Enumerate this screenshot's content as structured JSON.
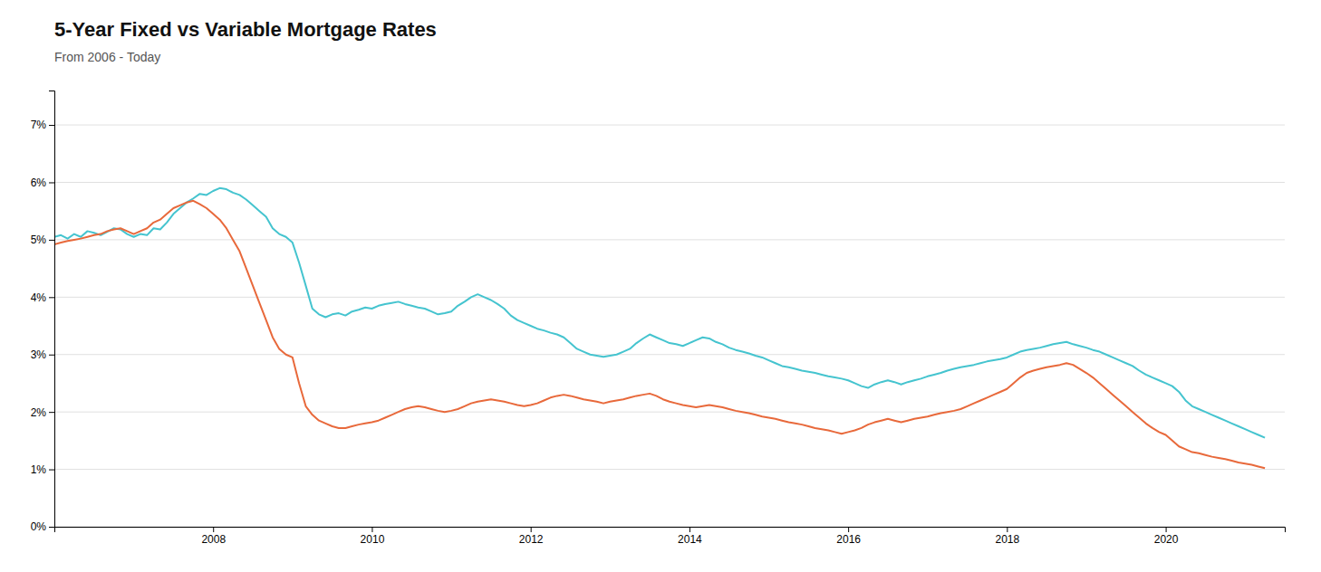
{
  "chart_data": {
    "type": "line",
    "title": "5-Year Fixed vs Variable Mortgage Rates",
    "subtitle": "From 2006 - Today",
    "x": [
      2006.0,
      2006.083,
      2006.167,
      2006.25,
      2006.333,
      2006.417,
      2006.5,
      2006.583,
      2006.667,
      2006.75,
      2006.833,
      2006.917,
      2007.0,
      2007.083,
      2007.167,
      2007.25,
      2007.333,
      2007.417,
      2007.5,
      2007.583,
      2007.667,
      2007.75,
      2007.833,
      2007.917,
      2008.0,
      2008.083,
      2008.167,
      2008.25,
      2008.333,
      2008.417,
      2008.5,
      2008.583,
      2008.667,
      2008.75,
      2008.833,
      2008.917,
      2009.0,
      2009.083,
      2009.167,
      2009.25,
      2009.333,
      2009.417,
      2009.5,
      2009.583,
      2009.667,
      2009.75,
      2009.833,
      2009.917,
      2010.0,
      2010.083,
      2010.167,
      2010.25,
      2010.333,
      2010.417,
      2010.5,
      2010.583,
      2010.667,
      2010.75,
      2010.833,
      2010.917,
      2011.0,
      2011.083,
      2011.167,
      2011.25,
      2011.333,
      2011.417,
      2011.5,
      2011.583,
      2011.667,
      2011.75,
      2011.833,
      2011.917,
      2012.0,
      2012.083,
      2012.167,
      2012.25,
      2012.333,
      2012.417,
      2012.5,
      2012.583,
      2012.667,
      2012.75,
      2012.833,
      2012.917,
      2013.0,
      2013.083,
      2013.167,
      2013.25,
      2013.333,
      2013.417,
      2013.5,
      2013.583,
      2013.667,
      2013.75,
      2013.833,
      2013.917,
      2014.0,
      2014.083,
      2014.167,
      2014.25,
      2014.333,
      2014.417,
      2014.5,
      2014.583,
      2014.667,
      2014.75,
      2014.833,
      2014.917,
      2015.0,
      2015.083,
      2015.167,
      2015.25,
      2015.333,
      2015.417,
      2015.5,
      2015.583,
      2015.667,
      2015.75,
      2015.833,
      2015.917,
      2016.0,
      2016.083,
      2016.167,
      2016.25,
      2016.333,
      2016.417,
      2016.5,
      2016.583,
      2016.667,
      2016.75,
      2016.833,
      2016.917,
      2017.0,
      2017.083,
      2017.167,
      2017.25,
      2017.333,
      2017.417,
      2017.5,
      2017.583,
      2017.667,
      2017.75,
      2017.833,
      2017.917,
      2018.0,
      2018.083,
      2018.167,
      2018.25,
      2018.333,
      2018.417,
      2018.5,
      2018.583,
      2018.667,
      2018.75,
      2018.833,
      2018.917,
      2019.0,
      2019.083,
      2019.167,
      2019.25,
      2019.333,
      2019.417,
      2019.5,
      2019.583,
      2019.667,
      2019.75,
      2019.833,
      2019.917,
      2020.0,
      2020.083,
      2020.167,
      2020.25,
      2020.333,
      2020.417,
      2020.5,
      2020.583,
      2020.667,
      2020.75,
      2020.833,
      2020.917,
      2021.0,
      2021.083,
      2021.167,
      2021.25
    ],
    "series": [
      {
        "color": "#45c4cf",
        "values": [
          5.05,
          5.08,
          5.02,
          5.1,
          5.05,
          5.15,
          5.12,
          5.08,
          5.14,
          5.2,
          5.18,
          5.1,
          5.05,
          5.1,
          5.08,
          5.2,
          5.18,
          5.3,
          5.45,
          5.55,
          5.65,
          5.72,
          5.8,
          5.78,
          5.85,
          5.9,
          5.88,
          5.82,
          5.78,
          5.7,
          5.6,
          5.5,
          5.4,
          5.2,
          5.1,
          5.05,
          4.95,
          4.6,
          4.2,
          3.8,
          3.7,
          3.65,
          3.7,
          3.72,
          3.68,
          3.75,
          3.78,
          3.82,
          3.8,
          3.85,
          3.88,
          3.9,
          3.92,
          3.88,
          3.85,
          3.82,
          3.8,
          3.75,
          3.7,
          3.72,
          3.75,
          3.85,
          3.92,
          4.0,
          4.05,
          4.0,
          3.95,
          3.88,
          3.8,
          3.68,
          3.6,
          3.55,
          3.5,
          3.45,
          3.42,
          3.38,
          3.35,
          3.3,
          3.2,
          3.1,
          3.05,
          3.0,
          2.98,
          2.96,
          2.98,
          3.0,
          3.05,
          3.1,
          3.2,
          3.28,
          3.35,
          3.3,
          3.25,
          3.2,
          3.18,
          3.15,
          3.2,
          3.25,
          3.3,
          3.28,
          3.22,
          3.18,
          3.12,
          3.08,
          3.05,
          3.02,
          2.98,
          2.95,
          2.9,
          2.85,
          2.8,
          2.78,
          2.75,
          2.72,
          2.7,
          2.68,
          2.65,
          2.62,
          2.6,
          2.58,
          2.55,
          2.5,
          2.45,
          2.42,
          2.48,
          2.52,
          2.55,
          2.52,
          2.48,
          2.52,
          2.55,
          2.58,
          2.62,
          2.65,
          2.68,
          2.72,
          2.75,
          2.78,
          2.8,
          2.82,
          2.85,
          2.88,
          2.9,
          2.92,
          2.95,
          3.0,
          3.05,
          3.08,
          3.1,
          3.12,
          3.15,
          3.18,
          3.2,
          3.22,
          3.18,
          3.15,
          3.12,
          3.08,
          3.05,
          3.0,
          2.95,
          2.9,
          2.85,
          2.8,
          2.72,
          2.65,
          2.6,
          2.55,
          2.5,
          2.45,
          2.35,
          2.2,
          2.1,
          2.05,
          2.0,
          1.95,
          1.9,
          1.85,
          1.8,
          1.75,
          1.7,
          1.65,
          1.6,
          1.55
        ]
      },
      {
        "color": "#e8693b",
        "values": [
          4.92,
          4.95,
          4.98,
          5.0,
          5.02,
          5.05,
          5.08,
          5.1,
          5.15,
          5.18,
          5.2,
          5.15,
          5.1,
          5.15,
          5.2,
          5.3,
          5.35,
          5.45,
          5.55,
          5.6,
          5.65,
          5.68,
          5.62,
          5.55,
          5.45,
          5.35,
          5.2,
          5.0,
          4.8,
          4.5,
          4.2,
          3.9,
          3.6,
          3.3,
          3.1,
          3.0,
          2.95,
          2.5,
          2.1,
          1.95,
          1.85,
          1.8,
          1.75,
          1.72,
          1.72,
          1.75,
          1.78,
          1.8,
          1.82,
          1.85,
          1.9,
          1.95,
          2.0,
          2.05,
          2.08,
          2.1,
          2.08,
          2.05,
          2.02,
          2.0,
          2.02,
          2.05,
          2.1,
          2.15,
          2.18,
          2.2,
          2.22,
          2.2,
          2.18,
          2.15,
          2.12,
          2.1,
          2.12,
          2.15,
          2.2,
          2.25,
          2.28,
          2.3,
          2.28,
          2.25,
          2.22,
          2.2,
          2.18,
          2.15,
          2.18,
          2.2,
          2.22,
          2.25,
          2.28,
          2.3,
          2.32,
          2.28,
          2.22,
          2.18,
          2.15,
          2.12,
          2.1,
          2.08,
          2.1,
          2.12,
          2.1,
          2.08,
          2.05,
          2.02,
          2.0,
          1.98,
          1.95,
          1.92,
          1.9,
          1.88,
          1.85,
          1.82,
          1.8,
          1.78,
          1.75,
          1.72,
          1.7,
          1.68,
          1.65,
          1.62,
          1.65,
          1.68,
          1.72,
          1.78,
          1.82,
          1.85,
          1.88,
          1.85,
          1.82,
          1.85,
          1.88,
          1.9,
          1.92,
          1.95,
          1.98,
          2.0,
          2.02,
          2.05,
          2.1,
          2.15,
          2.2,
          2.25,
          2.3,
          2.35,
          2.4,
          2.5,
          2.6,
          2.68,
          2.72,
          2.75,
          2.78,
          2.8,
          2.82,
          2.85,
          2.82,
          2.75,
          2.68,
          2.6,
          2.5,
          2.4,
          2.3,
          2.2,
          2.1,
          2.0,
          1.9,
          1.8,
          1.72,
          1.65,
          1.6,
          1.5,
          1.4,
          1.35,
          1.3,
          1.28,
          1.25,
          1.22,
          1.2,
          1.18,
          1.15,
          1.12,
          1.1,
          1.08,
          1.05,
          1.02
        ]
      }
    ],
    "xlim": [
      2006.0,
      2021.5
    ],
    "xticks": [
      2008,
      2010,
      2012,
      2014,
      2016,
      2018,
      2020
    ],
    "ylim": [
      0,
      7.6
    ],
    "yticks": [
      {
        "value": 0,
        "label": "0%"
      },
      {
        "value": 1,
        "label": "1%"
      },
      {
        "value": 2,
        "label": "2%"
      },
      {
        "value": 3,
        "label": "3%"
      },
      {
        "value": 4,
        "label": "4%"
      },
      {
        "value": 5,
        "label": "5%"
      },
      {
        "value": 6,
        "label": "6%"
      },
      {
        "value": 7,
        "label": "7%"
      }
    ],
    "grid": "y"
  }
}
